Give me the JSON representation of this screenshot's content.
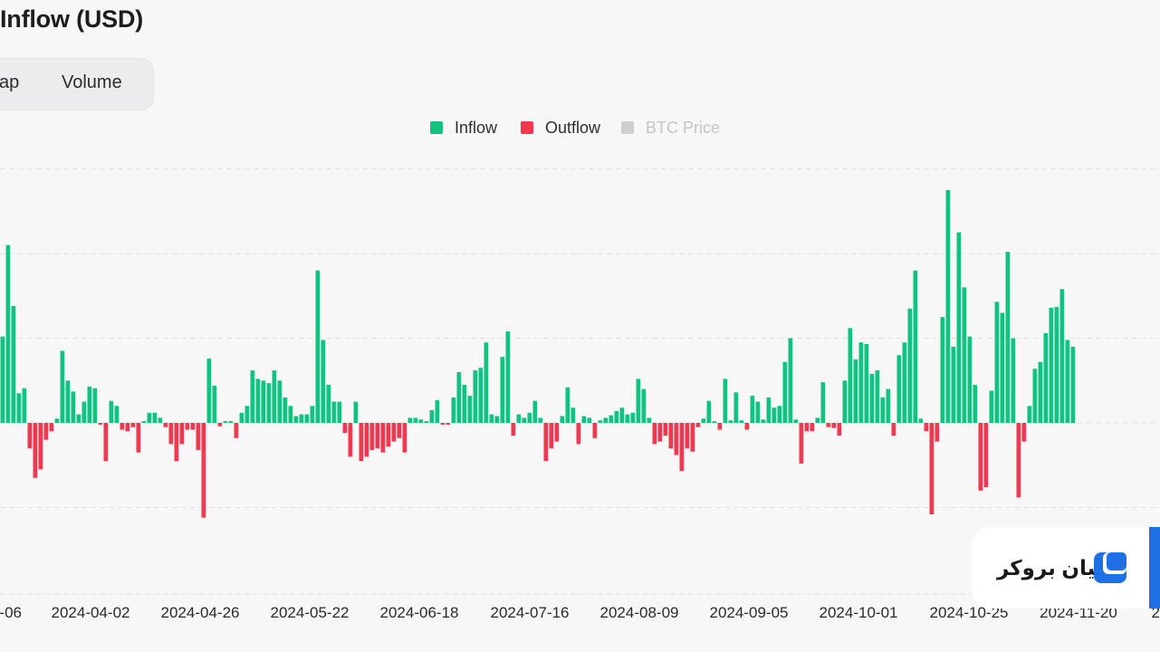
{
  "header": {
    "title": "Inflow (USD)"
  },
  "tabs": [
    {
      "label": "ap"
    },
    {
      "label": "Volume"
    }
  ],
  "legend": [
    {
      "label": "Inflow",
      "color": "#12c27e"
    },
    {
      "label": "Outflow",
      "color": "#f3384e"
    },
    {
      "label": "BTC Price",
      "color": "#cfcfcf"
    }
  ],
  "watermark": {
    "text": "لیان بروکر",
    "logo": "broker-logo-icon"
  },
  "chart_data": {
    "type": "bar",
    "title": "Inflow (USD)",
    "xlabel": "",
    "ylabel": "",
    "grid": true,
    "legend_position": "top-center",
    "x_tick_labels": [
      "-06",
      "2024-04-02",
      "2024-04-26",
      "2024-05-22",
      "2024-06-18",
      "2024-07-16",
      "2024-08-09",
      "2024-09-05",
      "2024-10-01",
      "2024-10-25",
      "2024-11-20",
      "2"
    ],
    "ylim": [
      -2.0,
      3.0
    ],
    "series": [
      {
        "name": "Inflow",
        "color": "#12c27e"
      },
      {
        "name": "Outflow",
        "color": "#f3384e"
      }
    ],
    "values": [
      1.02,
      2.1,
      1.38,
      0.35,
      0.41,
      -0.3,
      -0.65,
      -0.55,
      -0.2,
      -0.1,
      0.05,
      0.85,
      0.5,
      0.37,
      0.1,
      0.25,
      0.43,
      0.41,
      -0.02,
      -0.45,
      0.26,
      0.2,
      -0.08,
      -0.1,
      -0.05,
      -0.35,
      0.02,
      0.12,
      0.12,
      0.06,
      -0.05,
      -0.25,
      -0.45,
      -0.25,
      -0.08,
      -0.08,
      -0.32,
      -1.12,
      0.76,
      0.44,
      -0.04,
      0.02,
      0.02,
      -0.18,
      0.12,
      0.2,
      0.62,
      0.52,
      0.5,
      0.47,
      0.62,
      0.5,
      0.3,
      0.2,
      0.08,
      0.1,
      0.1,
      0.2,
      1.8,
      0.98,
      0.45,
      0.25,
      0.25,
      -0.12,
      -0.4,
      0.25,
      -0.45,
      -0.4,
      -0.32,
      -0.3,
      -0.35,
      -0.28,
      -0.22,
      -0.18,
      -0.35,
      0.06,
      0.06,
      0.04,
      0.02,
      0.15,
      0.27,
      -0.02,
      -0.02,
      0.3,
      0.6,
      0.45,
      0.32,
      0.62,
      0.65,
      0.95,
      0.1,
      0.08,
      0.78,
      1.08,
      -0.15,
      0.1,
      0.06,
      0.12,
      0.26,
      0.06,
      -0.45,
      -0.3,
      -0.22,
      0.08,
      0.42,
      0.18,
      -0.25,
      0.08,
      0.06,
      -0.18,
      0.03,
      0.06,
      0.09,
      0.14,
      0.18,
      0.1,
      0.12,
      0.52,
      0.4,
      0.06,
      -0.25,
      -0.22,
      -0.15,
      -0.3,
      -0.38,
      -0.57,
      -0.3,
      -0.34,
      -0.05,
      0.05,
      0.26,
      0.02,
      -0.08,
      0.52,
      0.03,
      0.36,
      0.03,
      -0.08,
      0.32,
      0.25,
      0.04,
      0.3,
      0.18,
      0.2,
      0.72,
      1.0,
      0.04,
      -0.48,
      -0.1,
      -0.1,
      0.06,
      0.48,
      -0.05,
      -0.06,
      -0.15,
      0.5,
      1.12,
      0.75,
      0.95,
      0.93,
      0.58,
      0.62,
      0.3,
      0.4,
      -0.15,
      0.8,
      0.95,
      1.35,
      1.8,
      0.05,
      -0.1,
      -1.08,
      -0.22,
      1.25,
      2.75,
      0.9,
      2.25,
      1.6,
      1.02,
      0.45,
      -0.8,
      -0.76,
      0.38,
      1.43,
      1.3,
      2.02,
      1.0,
      -0.88,
      -0.22,
      0.2,
      0.64,
      0.72,
      1.06,
      1.36,
      1.37,
      1.58,
      0.98,
      0.9
    ]
  }
}
